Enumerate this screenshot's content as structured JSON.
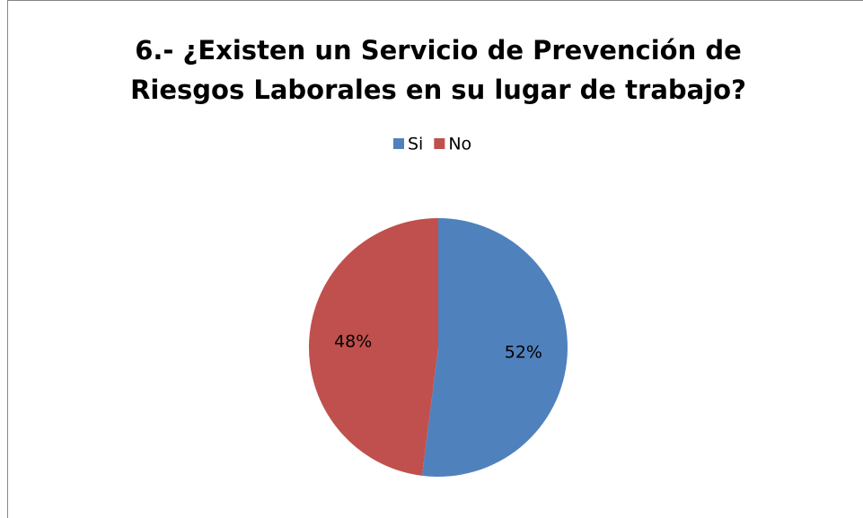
{
  "chart_data": {
    "type": "pie",
    "title": "6.- ¿Existen un Servicio de Prevención de Riesgos Laborales en su lugar de trabajo?",
    "categories": [
      "Si",
      "No"
    ],
    "values": [
      52,
      48
    ],
    "value_labels": [
      "52%",
      "48%"
    ],
    "colors": [
      "#4f81bd",
      "#c0504d"
    ],
    "legend": "top"
  }
}
